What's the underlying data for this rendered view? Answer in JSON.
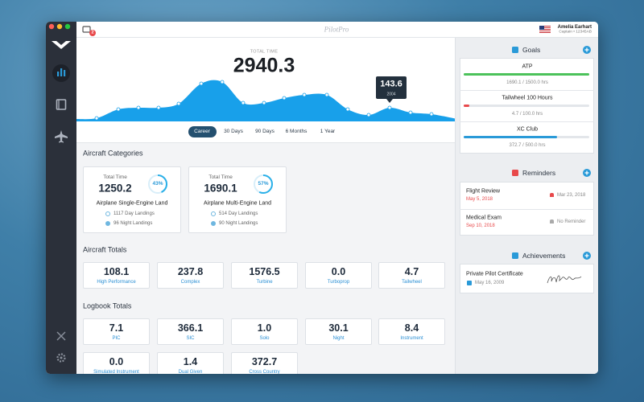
{
  "header": {
    "app_title": "PilotPro",
    "notification_count": "2",
    "user_name": "Amelia Earhart",
    "user_subtitle": "Captain • 12345AB"
  },
  "summary": {
    "label": "TOTAL TIME",
    "value": "2940.3",
    "tooltip": {
      "value": "143.6",
      "year": "2004"
    },
    "tabs": [
      "Career",
      "30 Days",
      "90 Days",
      "6 Months",
      "1 Year"
    ]
  },
  "aircraft_categories": {
    "title": "Aircraft Categories",
    "cards": [
      {
        "label": "Total Time",
        "value": "1250.2",
        "percent": {
          "value": 43,
          "label": "43%"
        },
        "name": "Airplane Single-Engine Land",
        "day_landings": "1117 Day Landings",
        "night_landings": "96 Night Landings"
      },
      {
        "label": "Total Time",
        "value": "1690.1",
        "percent": {
          "value": 57,
          "label": "57%"
        },
        "name": "Airplane Multi-Engine Land",
        "day_landings": "514 Day Landings",
        "night_landings": "90 Night Landings"
      }
    ]
  },
  "aircraft_totals": {
    "title": "Aircraft Totals",
    "items": [
      {
        "value": "108.1",
        "label": "High Performance"
      },
      {
        "value": "237.8",
        "label": "Complex"
      },
      {
        "value": "1576.5",
        "label": "Turbine"
      },
      {
        "value": "0.0",
        "label": "Turboprop"
      },
      {
        "value": "4.7",
        "label": "Tailwheel"
      }
    ]
  },
  "logbook_totals": {
    "title": "Logbook Totals",
    "items": [
      {
        "value": "7.1",
        "label": "PIC"
      },
      {
        "value": "366.1",
        "label": "SIC"
      },
      {
        "value": "1.0",
        "label": "Solo"
      },
      {
        "value": "30.1",
        "label": "Night"
      },
      {
        "value": "8.4",
        "label": "Instrument"
      },
      {
        "value": "0.0",
        "label": "Simulated Instrument"
      },
      {
        "value": "1.4",
        "label": "Dual Given"
      },
      {
        "value": "372.7",
        "label": "Cross Country"
      }
    ]
  },
  "goals": {
    "title": "Goals",
    "items": [
      {
        "name": "ATP",
        "progress": "1690.1 / 1500.0 hrs",
        "color": "#4cc25a"
      },
      {
        "name": "Tailwheel 100 Hours",
        "progress": "4.7 / 100.0 hrs",
        "color": "#e8494b"
      },
      {
        "name": "XC Club",
        "progress": "372.7 / 500.0 hrs",
        "color": "#2a9ad8"
      }
    ]
  },
  "reminders": {
    "title": "Reminders",
    "items": [
      {
        "name": "Flight Review",
        "due": "May 5, 2018",
        "reminder": "Mar 23, 2018"
      },
      {
        "name": "Medical Exam",
        "due": "Sep 10, 2018",
        "reminder": "No Reminder"
      }
    ]
  },
  "achievements": {
    "title": "Achievements",
    "items": [
      {
        "name": "Private Pilot Certificate",
        "date": "May 16, 2009"
      }
    ]
  }
}
